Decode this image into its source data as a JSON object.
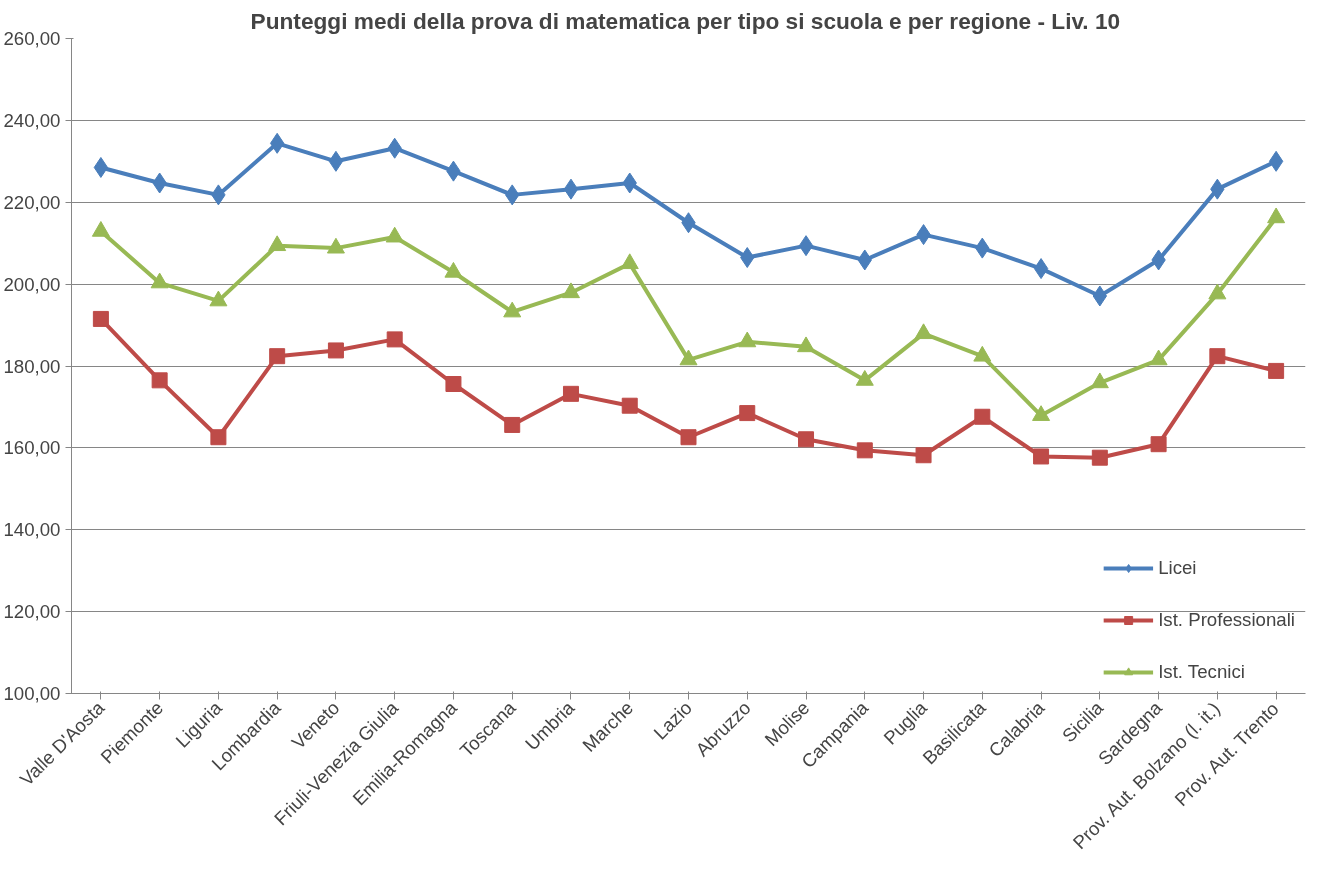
{
  "chart_data": {
    "type": "line",
    "title": "Punteggi medi della prova di matematica  per tipo si scuola e per regione - Liv. 10",
    "categories": [
      "Valle D'Aosta",
      "Piemonte",
      "Liguria",
      "Lombardia",
      "Veneto",
      "Friuli-Venezia Giulia",
      "Emilia-Romagna",
      "Toscana",
      "Umbria",
      "Marche",
      "Lazio",
      "Abruzzo",
      "Molise",
      "Campania",
      "Puglia",
      "Basilicata",
      "Calabria",
      "Sicilia",
      "Sardegna",
      "Prov. Aut. Bolzano (l. it.)",
      "Prov. Aut. Trento"
    ],
    "series": [
      {
        "name": "Licei",
        "color": "#4a7ebb",
        "marker": "diamond",
        "values": [
          228.5,
          224.7,
          221.8,
          234.4,
          230.0,
          233.2,
          227.6,
          221.8,
          223.2,
          224.7,
          215.0,
          206.5,
          209.4,
          205.9,
          212.1,
          208.8,
          203.8,
          197.1,
          205.9,
          223.2,
          230.0
        ]
      },
      {
        "name": "Ist. Professionali",
        "color": "#be4b48",
        "marker": "square",
        "values": [
          191.5,
          176.5,
          162.6,
          182.4,
          183.8,
          186.5,
          175.6,
          165.6,
          173.2,
          170.3,
          162.6,
          168.5,
          162.1,
          159.4,
          158.2,
          167.6,
          157.9,
          157.6,
          160.9,
          182.4,
          178.8
        ]
      },
      {
        "name": "Ist. Tecnici",
        "color": "#98b954",
        "marker": "triangle",
        "values": [
          212.9,
          200.3,
          195.9,
          209.4,
          208.8,
          211.5,
          202.9,
          193.2,
          197.9,
          205.0,
          181.5,
          185.9,
          184.7,
          176.5,
          187.9,
          182.4,
          167.9,
          175.9,
          181.5,
          197.6,
          216.2
        ]
      }
    ],
    "ylim": [
      100,
      260
    ],
    "yticks": [
      {
        "value": 100,
        "label": "100,00"
      },
      {
        "value": 120,
        "label": "120,00"
      },
      {
        "value": 140,
        "label": "140,00"
      },
      {
        "value": 160,
        "label": "160,00"
      },
      {
        "value": 180,
        "label": "180,00"
      },
      {
        "value": 200,
        "label": "200,00"
      },
      {
        "value": 220,
        "label": "220,00"
      },
      {
        "value": 240,
        "label": "240,00"
      },
      {
        "value": 260,
        "label": "260,00"
      }
    ],
    "grid": "y",
    "legend": "bottom right",
    "line_style": "solid"
  }
}
